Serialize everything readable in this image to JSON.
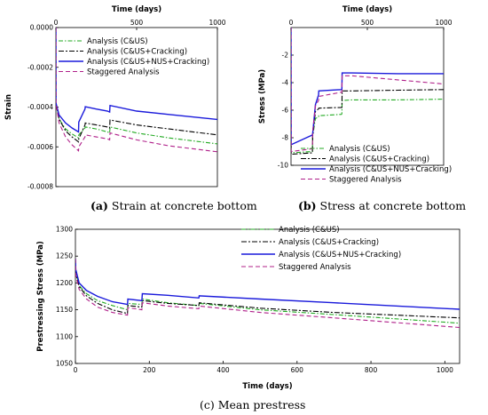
{
  "captions": {
    "a_letter": "(a)",
    "a_text": " Strain at concrete bottom",
    "b_letter": "(b)",
    "b_text": " Stress at concrete bottom",
    "c_text": "(c) Mean prestress"
  },
  "colors": {
    "Analysis (C&US)": "#22aa22",
    "Analysis (C&US+Cracking)": "#000000",
    "Analysis (C&US+NUS+Cracking)": "#1a1adb",
    "Staggered Analysis": "#b0208a"
  },
  "chart_data": [
    {
      "id": "a",
      "type": "line",
      "title": "",
      "xlabel": "Time (days)",
      "ylabel": "Strain",
      "xlim": [
        0,
        1000
      ],
      "ylim": [
        -0.0008,
        0
      ],
      "x_axis_position": "top",
      "legend_position": "top-right",
      "xticks": [
        "0",
        "500",
        "1000"
      ],
      "yticks": [
        "0.0000",
        "-0.0002",
        "-0.0004",
        "-0.0006",
        "-0.0008"
      ],
      "series": [
        {
          "name": "Analysis (C&US)",
          "x": [
            0,
            0.5,
            20,
            60,
            100,
            140,
            142,
            180,
            182,
            250,
            320,
            333,
            335,
            500,
            700,
            1000
          ],
          "y": [
            0,
            -0.00038,
            -0.00046,
            -0.00051,
            -0.000535,
            -0.000555,
            -0.00054,
            -0.000505,
            -0.0005,
            -0.00051,
            -0.000525,
            -0.00053,
            -0.0005,
            -0.00053,
            -0.000555,
            -0.000585
          ]
        },
        {
          "name": "Analysis (C&US+Cracking)",
          "x": [
            0,
            0.5,
            20,
            60,
            100,
            140,
            142,
            180,
            182,
            250,
            320,
            333,
            335,
            500,
            700,
            1000
          ],
          "y": [
            0,
            -0.00038,
            -0.00046,
            -0.00052,
            -0.00055,
            -0.000575,
            -0.00056,
            -0.00049,
            -0.00048,
            -0.00049,
            -0.0005,
            -0.000505,
            -0.000465,
            -0.00049,
            -0.00051,
            -0.00054
          ]
        },
        {
          "name": "Analysis (C&US+NUS+Cracking)",
          "x": [
            0,
            0.5,
            20,
            60,
            100,
            140,
            142,
            180,
            182,
            250,
            320,
            333,
            335,
            500,
            700,
            1000
          ],
          "y": [
            0,
            -0.00038,
            -0.00044,
            -0.00048,
            -0.000505,
            -0.000525,
            -0.000475,
            -0.00041,
            -0.000398,
            -0.00041,
            -0.00042,
            -0.000425,
            -0.000392,
            -0.00042,
            -0.000437,
            -0.000462
          ]
        },
        {
          "name": "Staggered Analysis",
          "x": [
            0,
            0.5,
            20,
            60,
            100,
            140,
            142,
            180,
            182,
            250,
            320,
            333,
            335,
            500,
            700,
            1000
          ],
          "y": [
            0,
            -0.00038,
            -0.00048,
            -0.00055,
            -0.00059,
            -0.00062,
            -0.0006,
            -0.00055,
            -0.00054,
            -0.00055,
            -0.00056,
            -0.000565,
            -0.00053,
            -0.000565,
            -0.000595,
            -0.000625
          ]
        }
      ]
    },
    {
      "id": "b",
      "type": "line",
      "title": "",
      "xlabel": "Time (days)",
      "ylabel": "Stress (MPa)",
      "xlim": [
        0,
        1000
      ],
      "ylim": [
        -10,
        0
      ],
      "x_axis_position": "top",
      "legend_position": "bottom-right",
      "xticks": [
        "0",
        "500",
        "1000"
      ],
      "yticks": [
        "-2",
        "-4",
        "-6",
        "-8",
        "-10"
      ],
      "series": [
        {
          "name": "Analysis (C&US)",
          "x": [
            0,
            0.5,
            140,
            142,
            160,
            180,
            182,
            330,
            333,
            335,
            400,
            700,
            1000
          ],
          "y": [
            0,
            -9.1,
            -9.0,
            -7.9,
            -6.6,
            -6.5,
            -6.4,
            -6.3,
            -6.25,
            -5.3,
            -5.25,
            -5.25,
            -5.2
          ]
        },
        {
          "name": "Analysis (C&US+Cracking)",
          "x": [
            0,
            0.5,
            140,
            142,
            160,
            180,
            182,
            330,
            333,
            335,
            400,
            700,
            1000
          ],
          "y": [
            0,
            -9.2,
            -9.1,
            -7.9,
            -6.1,
            -5.9,
            -5.85,
            -5.8,
            -5.8,
            -4.6,
            -4.6,
            -4.55,
            -4.5
          ]
        },
        {
          "name": "Analysis (C&US+NUS+Cracking)",
          "x": [
            0,
            0.5,
            140,
            142,
            160,
            180,
            182,
            330,
            333,
            335,
            400,
            700,
            1000
          ],
          "y": [
            0,
            -8.5,
            -7.8,
            -7.7,
            -5.6,
            -4.9,
            -4.6,
            -4.5,
            -4.5,
            -3.3,
            -3.3,
            -3.35,
            -3.35
          ]
        },
        {
          "name": "Staggered Analysis",
          "x": [
            0,
            0.5,
            140,
            142,
            160,
            180,
            182,
            330,
            333,
            335,
            400,
            700,
            1000
          ],
          "y": [
            0,
            -9.0,
            -8.8,
            -7.6,
            -5.7,
            -5.3,
            -5.0,
            -4.7,
            -4.7,
            -3.5,
            -3.5,
            -3.8,
            -4.1
          ]
        }
      ]
    },
    {
      "id": "c",
      "type": "line",
      "title": "",
      "xlabel": "Time (days)",
      "ylabel": "Prestressing Stress (MPa)",
      "xlim": [
        0,
        1040
      ],
      "ylim": [
        1050,
        1300
      ],
      "legend_position": "top-right",
      "xticks": [
        "0",
        "200",
        "400",
        "600",
        "800",
        "1000"
      ],
      "yticks": [
        "1300",
        "1250",
        "1200",
        "1150",
        "1100",
        "1050"
      ],
      "series": [
        {
          "name": "Analysis (C&US)",
          "x": [
            0,
            1,
            10,
            30,
            60,
            100,
            141,
            142,
            180,
            181,
            250,
            334,
            335,
            500,
            700,
            1040
          ],
          "y": [
            1245,
            1220,
            1195,
            1180,
            1167,
            1158,
            1150,
            1162,
            1160,
            1170,
            1163,
            1158,
            1162,
            1150,
            1141,
            1125
          ]
        },
        {
          "name": "Analysis (C&US+Cracking)",
          "x": [
            0,
            1,
            10,
            30,
            60,
            100,
            141,
            142,
            180,
            181,
            250,
            334,
            335,
            500,
            700,
            1040
          ],
          "y": [
            1245,
            1218,
            1193,
            1176,
            1162,
            1150,
            1143,
            1158,
            1155,
            1167,
            1162,
            1158,
            1163,
            1153,
            1145,
            1135
          ]
        },
        {
          "name": "Analysis (C&US+NUS+Cracking)",
          "x": [
            0,
            1,
            10,
            30,
            60,
            100,
            141,
            142,
            180,
            181,
            250,
            334,
            335,
            500,
            700,
            1040
          ],
          "y": [
            1245,
            1225,
            1200,
            1186,
            1175,
            1165,
            1160,
            1170,
            1167,
            1180,
            1177,
            1172,
            1176,
            1170,
            1163,
            1151
          ]
        },
        {
          "name": "Staggered Analysis",
          "x": [
            0,
            1,
            10,
            30,
            60,
            100,
            141,
            142,
            180,
            181,
            250,
            334,
            335,
            500,
            700,
            1040
          ],
          "y": [
            1245,
            1214,
            1188,
            1170,
            1155,
            1145,
            1140,
            1154,
            1150,
            1163,
            1157,
            1152,
            1157,
            1145,
            1135,
            1117
          ]
        }
      ]
    }
  ]
}
